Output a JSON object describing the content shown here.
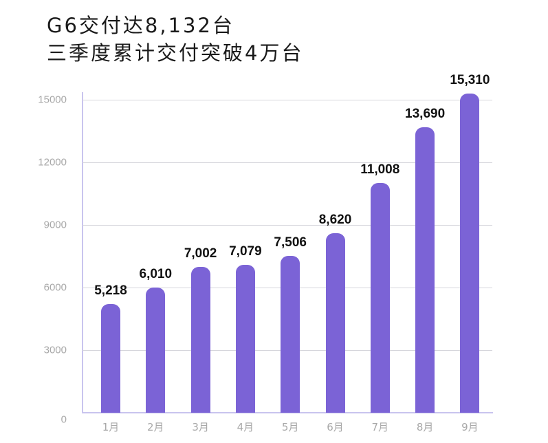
{
  "header": {
    "title_line1": "G6交付达8,132台",
    "title_line2": "三季度累计交付突破4万台"
  },
  "colors": {
    "bar": "#7B63D6",
    "axis": "#C9C4EE",
    "grid": "#D6D6DC",
    "tick_text": "#A8A8A8",
    "label_text": "#111111"
  },
  "chart_data": {
    "type": "bar",
    "title": "G6交付达8,132台 三季度累计交付突破4万台",
    "xlabel": "",
    "ylabel": "",
    "categories": [
      "1月",
      "2月",
      "3月",
      "4月",
      "5月",
      "6月",
      "7月",
      "8月",
      "9月"
    ],
    "values": [
      5218,
      6010,
      7002,
      7079,
      7506,
      8620,
      11008,
      13690,
      15310
    ],
    "value_labels": [
      "5,218",
      "6,010",
      "7,002",
      "7,079",
      "7,506",
      "8,620",
      "11,008",
      "13,690",
      "15,310"
    ],
    "yticks": [
      0,
      3000,
      6000,
      9000,
      12000,
      15000
    ],
    "ylim": [
      0,
      15310
    ],
    "grid": true,
    "legend": null
  }
}
